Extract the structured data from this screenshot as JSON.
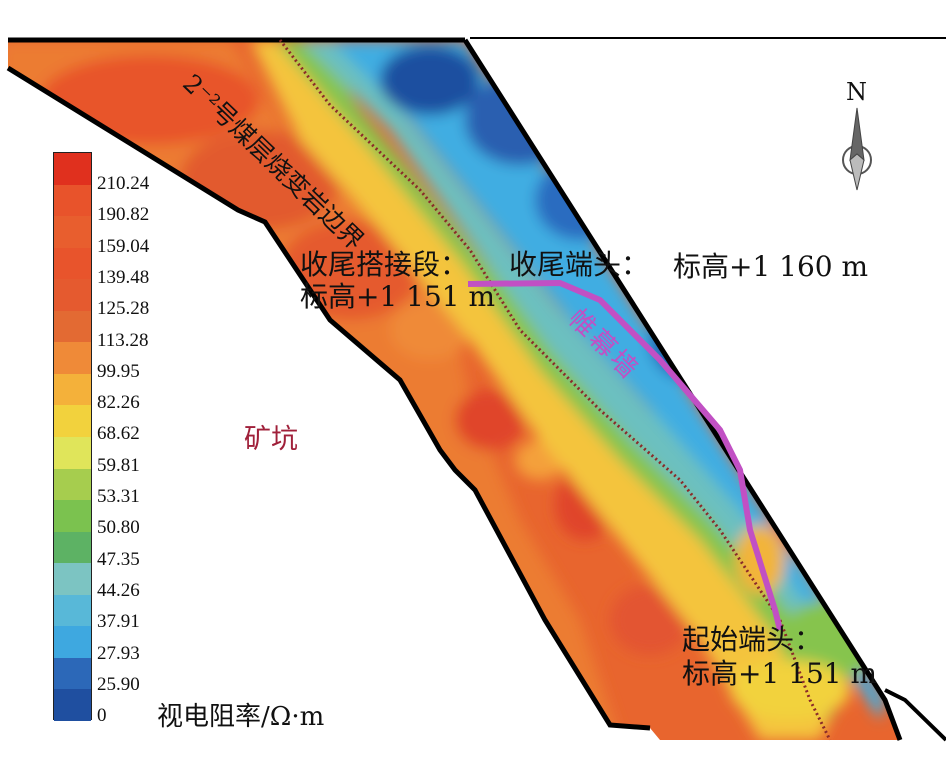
{
  "map": {
    "boundary_label": "2⁻²号煤层烧变岩边界",
    "curtain_wall_label": "帷幕墙",
    "pit_label": "矿坑",
    "north_label": "N",
    "tail_lap": {
      "name": "收尾搭接段：",
      "elevation": "标高+1 151 m"
    },
    "tail_end": {
      "name": "收尾端头：",
      "elevation": "标高+1 160 m"
    },
    "start_end": {
      "name": "起始端头：",
      "elevation": "标高+1 151 m"
    }
  },
  "legend": {
    "title": "视电阻率/Ω·m",
    "labels": [
      "210.24",
      "190.82",
      "159.04",
      "139.48",
      "125.28",
      "113.28",
      "99.95",
      "82.26",
      "68.62",
      "59.81",
      "53.31",
      "50.80",
      "47.35",
      "44.26",
      "37.91",
      "27.93",
      "25.90",
      "0"
    ],
    "colors": [
      "#e0301e",
      "#e8532b",
      "#e85e2e",
      "#e8542c",
      "#e55a2f",
      "#e36a33",
      "#ef8a38",
      "#f4b13a",
      "#f2d23d",
      "#e0e55a",
      "#a6cd4e",
      "#7bc24f",
      "#5db264",
      "#7cc4c2",
      "#58b8d8",
      "#3ea8e0",
      "#2c68b8",
      "#1f4fa0"
    ]
  },
  "colors": {
    "curtain_wall": "#c150c4",
    "pit_text": "#a0203a",
    "boundary": "#000000"
  }
}
